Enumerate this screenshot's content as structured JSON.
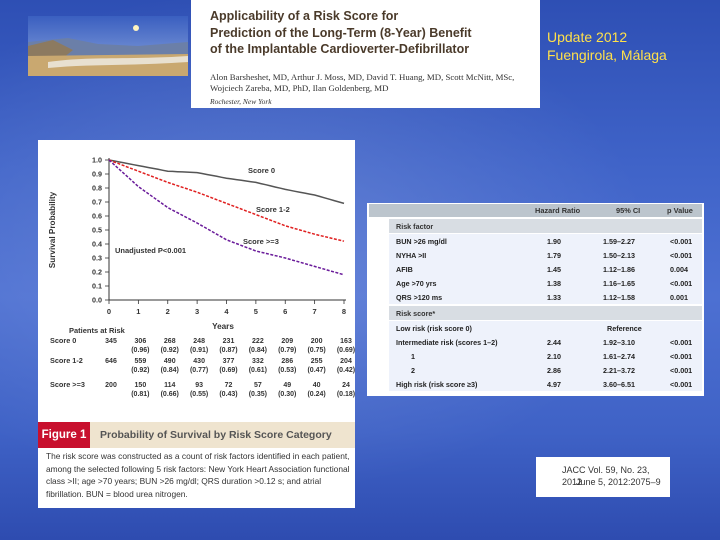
{
  "header": {
    "article_title_lines": [
      "Applicability of a Risk Score for",
      "Prediction of the Long-Term (8-Year) Benefit",
      "of the Implantable Cardioverter-Defibrillator"
    ],
    "authors_lines": [
      "Alon Barsheshet, MD, Arthur J. Moss, MD, David T. Huang, MD, Scott McNitt, MSc,",
      "Wojciech Zareba, MD, PhD, Ilan Goldenberg, MD"
    ],
    "place": "Rochester, New York",
    "update_lines": [
      "Update 2012",
      "Fuengirola, Málaga"
    ]
  },
  "figure": {
    "label": "Figure 1",
    "title": "Probability of Survival by Risk Score Category",
    "caption": "The risk score was constructed as a count of risk factors identified in each patient, among the selected following 5 risk factors: New York Heart Association functional class >II; age >70 years; BUN >26 mg/dl; QRS duration >0.12 s; and atrial fibrillation. BUN = blood urea nitrogen.",
    "annotation": "Unadjusted P<0.001",
    "patients_at_risk_label": "Patients at Risk",
    "risk_table": [
      {
        "name": "Score 0",
        "counts": [
          "345",
          "306",
          "268",
          "248",
          "231",
          "222",
          "209",
          "200",
          "163"
        ],
        "pcts": [
          "(0.96)",
          "(0.92)",
          "(0.91)",
          "(0.87)",
          "(0.84)",
          "(0.79)",
          "(0.75)",
          "(0.69)"
        ]
      },
      {
        "name": "Score 1-2",
        "counts": [
          "646",
          "559",
          "490",
          "430",
          "377",
          "332",
          "286",
          "255",
          "204"
        ],
        "pcts": [
          "(0.92)",
          "(0.84)",
          "(0.77)",
          "(0.69)",
          "(0.61)",
          "(0.53)",
          "(0.47)",
          "(0.42)"
        ]
      },
      {
        "name": "Score >=3",
        "counts": [
          "200",
          "150",
          "114",
          "93",
          "72",
          "57",
          "49",
          "40",
          "24"
        ],
        "pcts": [
          "(0.81)",
          "(0.66)",
          "(0.55)",
          "(0.43)",
          "(0.35)",
          "(0.30)",
          "(0.24)",
          "(0.18)"
        ]
      }
    ]
  },
  "chart_data": {
    "type": "line",
    "title": "",
    "xlabel": "Years",
    "ylabel": "Survival Probability",
    "xlim": [
      0,
      8
    ],
    "ylim": [
      0,
      1
    ],
    "x_ticks": [
      0,
      1,
      2,
      3,
      4,
      5,
      6,
      7,
      8
    ],
    "y_ticks": [
      0.0,
      0.1,
      0.2,
      0.3,
      0.4,
      0.5,
      0.6,
      0.7,
      0.8,
      0.9,
      1.0
    ],
    "series": [
      {
        "name": "Score 0",
        "color": "#555555",
        "dash": "solid",
        "x": [
          0,
          1,
          2,
          3,
          4,
          5,
          6,
          7,
          8
        ],
        "values": [
          1.0,
          0.96,
          0.92,
          0.91,
          0.87,
          0.84,
          0.79,
          0.75,
          0.69
        ]
      },
      {
        "name": "Score 1-2",
        "color": "#e02020",
        "dash": "dashed",
        "x": [
          0,
          1,
          2,
          3,
          4,
          5,
          6,
          7,
          8
        ],
        "values": [
          1.0,
          0.92,
          0.84,
          0.77,
          0.69,
          0.61,
          0.53,
          0.47,
          0.42
        ]
      },
      {
        "name": "Score >=3",
        "color": "#6a1b9a",
        "dash": "dashed",
        "x": [
          0,
          1,
          2,
          3,
          4,
          5,
          6,
          7,
          8
        ],
        "values": [
          1.0,
          0.81,
          0.66,
          0.55,
          0.43,
          0.35,
          0.3,
          0.24,
          0.18
        ]
      }
    ],
    "series_labels": [
      "Score 0",
      "Score 1-2",
      "Score >=3"
    ]
  },
  "hr_table": {
    "columns": [
      "Hazard Ratio",
      "95% CI",
      "p Value"
    ],
    "section_risk_factor": "Risk factor",
    "risk_factors": [
      {
        "label": "BUN >26 mg/dl",
        "hr": "1.90",
        "ci": "1.59–2.27",
        "p": "<0.001"
      },
      {
        "label": "NYHA >II",
        "hr": "1.79",
        "ci": "1.50–2.13",
        "p": "<0.001"
      },
      {
        "label": "AFIB",
        "hr": "1.45",
        "ci": "1.12–1.86",
        "p": "0.004"
      },
      {
        "label": "Age >70 yrs",
        "hr": "1.38",
        "ci": "1.16–1.65",
        "p": "<0.001"
      },
      {
        "label": "QRS >120 ms",
        "hr": "1.33",
        "ci": "1.12–1.58",
        "p": "0.001"
      }
    ],
    "section_risk_score": "Risk score*",
    "low_risk_label": "Low risk (risk score 0)",
    "reference": "Reference",
    "intermediate_label": "Intermediate risk (scores 1–2)",
    "intermediate": {
      "hr": "2.44",
      "ci": "1.92–3.10",
      "p": "<0.001"
    },
    "score1": {
      "label": "1",
      "hr": "2.10",
      "ci": "1.61–2.74",
      "p": "<0.001"
    },
    "score2": {
      "label": "2",
      "hr": "2.86",
      "ci": "2.21–3.72",
      "p": "<0.001"
    },
    "high_label": "High risk (risk score ≥3)",
    "high": {
      "hr": "4.97",
      "ci": "3.60–6.51",
      "p": "<0.001"
    }
  },
  "citation": {
    "line1": "JACC Vol. 59, No. 23, 2012",
    "line2": "June 5, 2012:2075–9"
  }
}
